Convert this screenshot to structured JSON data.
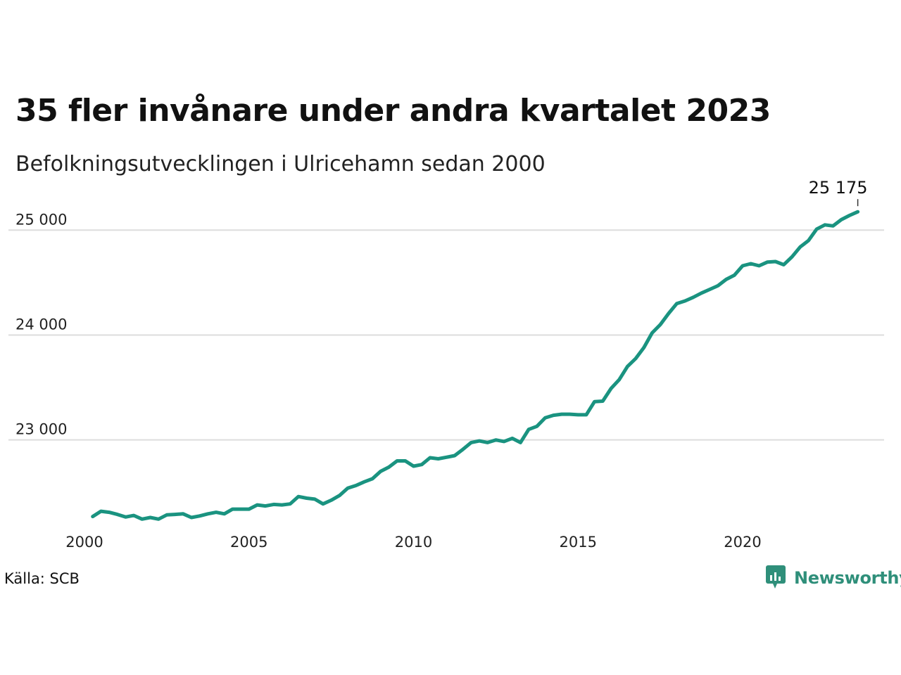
{
  "title": "35 fler invånare under andra kvartalet 2023",
  "subtitle": "Befolkningsutvecklingen i Ulricehamn sedan 2000",
  "source": "Källa: SCB",
  "brand": "Newsworthy",
  "colors": {
    "line": "#1a9380",
    "grid": "#dddddd",
    "brand": "#2f8f7a"
  },
  "icons": {
    "brand": "newsworthy-logo-icon"
  },
  "chart_data": {
    "type": "line",
    "title": "35 fler invånare under andra kvartalet 2023",
    "subtitle": "Befolkningsutvecklingen i Ulricehamn sedan 2000",
    "xlabel": "",
    "ylabel": "",
    "xlim": [
      2000,
      2024.3
    ],
    "ylim": [
      22200,
      25250
    ],
    "x_ticks": [
      2000,
      2005,
      2010,
      2015,
      2020
    ],
    "x_tick_labels": [
      "2000",
      "2005",
      "2010",
      "2015",
      "2020"
    ],
    "y_ticks": [
      23000,
      24000,
      25000
    ],
    "y_tick_labels": [
      "23 000",
      "24 000",
      "25 000"
    ],
    "grid": "horizontal",
    "last_value_label": "25 175",
    "series": [
      {
        "x": [
          2000.25,
          2000.5,
          2000.75,
          2001.0,
          2001.25,
          2001.5,
          2001.75,
          2002.0,
          2002.25,
          2002.5,
          2002.75,
          2003.0,
          2003.25,
          2003.5,
          2003.75,
          2004.0,
          2004.25,
          2004.5,
          2004.75,
          2005.0,
          2005.25,
          2005.5,
          2005.75,
          2006.0,
          2006.25,
          2006.5,
          2006.75,
          2007.0,
          2007.25,
          2007.5,
          2007.75,
          2008.0,
          2008.25,
          2008.5,
          2008.75,
          2009.0,
          2009.25,
          2009.5,
          2009.75,
          2010.0,
          2010.25,
          2010.5,
          2010.75,
          2011.0,
          2011.25,
          2011.5,
          2011.75,
          2012.0,
          2012.25,
          2012.5,
          2012.75,
          2013.0,
          2013.25,
          2013.5,
          2013.75,
          2014.0,
          2014.25,
          2014.5,
          2014.75,
          2015.0,
          2015.25,
          2015.5,
          2015.75,
          2016.0,
          2016.25,
          2016.5,
          2016.75,
          2017.0,
          2017.25,
          2017.5,
          2017.75,
          2018.0,
          2018.25,
          2018.5,
          2018.75,
          2019.0,
          2019.25,
          2019.5,
          2019.75,
          2020.0,
          2020.25,
          2020.5,
          2020.75,
          2021.0,
          2021.25,
          2021.5,
          2021.75,
          2022.0,
          2022.25,
          2022.5,
          2022.75,
          2023.0,
          2023.25,
          2023.5
        ],
        "values": [
          22270,
          22320,
          22310,
          22290,
          22265,
          22280,
          22245,
          22260,
          22245,
          22285,
          22290,
          22295,
          22260,
          22275,
          22295,
          22310,
          22295,
          22340,
          22340,
          22340,
          22380,
          22370,
          22385,
          22380,
          22390,
          22460,
          22445,
          22435,
          22390,
          22425,
          22470,
          22540,
          22565,
          22600,
          22630,
          22700,
          22740,
          22800,
          22800,
          22750,
          22765,
          22830,
          22820,
          22835,
          22850,
          22910,
          22975,
          22990,
          22975,
          23000,
          22985,
          23015,
          22975,
          23100,
          23130,
          23210,
          23235,
          23245,
          23245,
          23240,
          23240,
          23365,
          23370,
          23490,
          23575,
          23700,
          23775,
          23880,
          24020,
          24100,
          24205,
          24300,
          24325,
          24360,
          24400,
          24435,
          24470,
          24530,
          24570,
          24660,
          24680,
          24660,
          24695,
          24700,
          24670,
          24745,
          24840,
          24900,
          25010,
          25050,
          25040,
          25100,
          25140,
          25175
        ]
      }
    ]
  }
}
